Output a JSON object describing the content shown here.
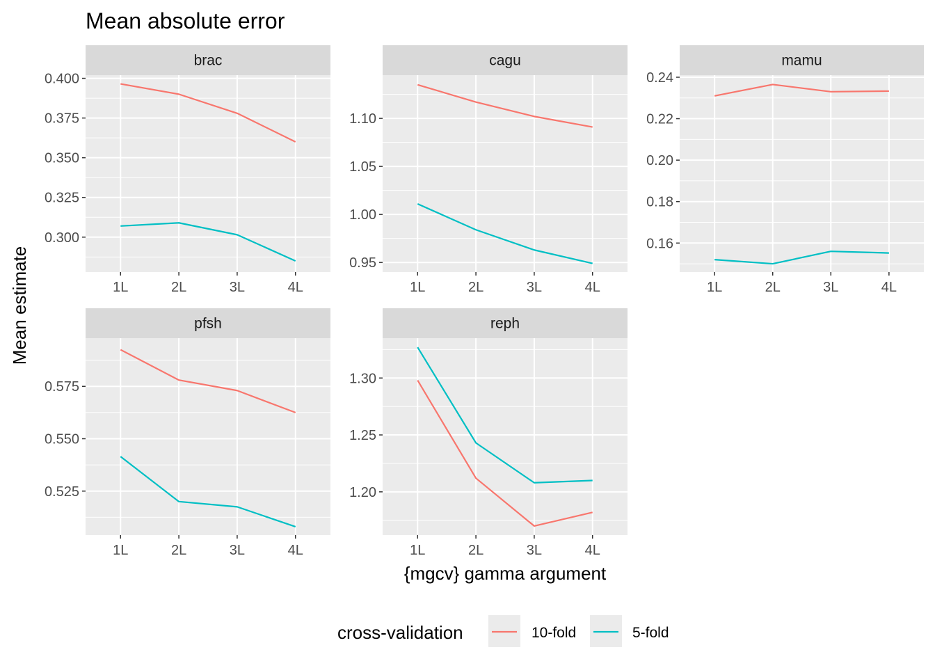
{
  "chart_data": {
    "type": "line",
    "title": "Mean absolute error",
    "xlabel": "{mgcv} gamma argument",
    "ylabel": "Mean estimate",
    "categories": [
      "1L",
      "2L",
      "3L",
      "4L"
    ],
    "grid": true,
    "legend": {
      "title": "cross-validation",
      "position": "bottom",
      "entries": [
        {
          "name": "10-fold",
          "color": "#F8766D"
        },
        {
          "name": "5-fold",
          "color": "#00BFC4"
        }
      ]
    },
    "panels": [
      {
        "name": "brac",
        "ylim": [
          0.278,
          0.402
        ],
        "yticks": [
          0.3,
          0.325,
          0.35,
          0.375,
          0.4
        ],
        "ytick_labels": [
          "0.300",
          "0.325",
          "0.350",
          "0.375",
          "0.400"
        ],
        "series": [
          {
            "name": "10-fold",
            "values": [
              0.3965,
              0.39,
              0.378,
              0.36
            ]
          },
          {
            "name": "5-fold",
            "values": [
              0.307,
              0.309,
              0.3015,
              0.285
            ]
          }
        ]
      },
      {
        "name": "cagu",
        "ylim": [
          0.94,
          1.145
        ],
        "yticks": [
          0.95,
          1.0,
          1.05,
          1.1
        ],
        "ytick_labels": [
          "0.95",
          "1.00",
          "1.05",
          "1.10"
        ],
        "series": [
          {
            "name": "10-fold",
            "values": [
              1.135,
              1.117,
              1.102,
              1.091
            ]
          },
          {
            "name": "5-fold",
            "values": [
              1.011,
              0.984,
              0.963,
              0.949
            ]
          }
        ]
      },
      {
        "name": "mamu",
        "ylim": [
          0.146,
          0.241
        ],
        "yticks": [
          0.16,
          0.18,
          0.2,
          0.22,
          0.24
        ],
        "ytick_labels": [
          "0.16",
          "0.18",
          "0.20",
          "0.22",
          "0.24"
        ],
        "series": [
          {
            "name": "10-fold",
            "values": [
              0.231,
              0.2365,
              0.233,
              0.2333
            ]
          },
          {
            "name": "5-fold",
            "values": [
              0.152,
              0.15,
              0.156,
              0.1552
            ]
          }
        ]
      },
      {
        "name": "pfsh",
        "ylim": [
          0.504,
          0.598
        ],
        "yticks": [
          0.525,
          0.55,
          0.575
        ],
        "ytick_labels": [
          "0.525",
          "0.550",
          "0.575"
        ],
        "series": [
          {
            "name": "10-fold",
            "values": [
              0.5925,
              0.578,
              0.573,
              0.5625
            ]
          },
          {
            "name": "5-fold",
            "values": [
              0.5415,
              0.52,
              0.5175,
              0.508
            ]
          }
        ]
      },
      {
        "name": "reph",
        "ylim": [
          1.162,
          1.335
        ],
        "yticks": [
          1.2,
          1.25,
          1.3
        ],
        "ytick_labels": [
          "1.20",
          "1.25",
          "1.30"
        ],
        "series": [
          {
            "name": "10-fold",
            "values": [
              1.298,
              1.212,
              1.17,
              1.182
            ]
          },
          {
            "name": "5-fold",
            "values": [
              1.327,
              1.243,
              1.208,
              1.21
            ]
          }
        ]
      }
    ]
  }
}
